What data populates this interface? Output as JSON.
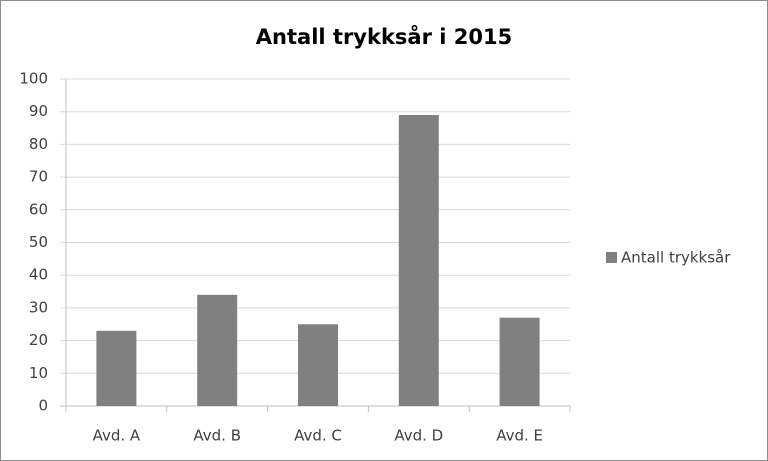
{
  "chart_data": {
    "type": "bar",
    "title": "Antall trykksår i 2015",
    "categories": [
      "Avd. A",
      "Avd. B",
      "Avd. C",
      "Avd. D",
      "Avd. E"
    ],
    "series": [
      {
        "name": "Antall trykksår",
        "color": "#808080",
        "values": [
          23,
          34,
          25,
          89,
          27
        ]
      }
    ],
    "ylim": [
      0,
      100
    ],
    "yticks": [
      0,
      10,
      20,
      30,
      40,
      50,
      60,
      70,
      80,
      90,
      100
    ],
    "grid": true,
    "legend": "right"
  }
}
